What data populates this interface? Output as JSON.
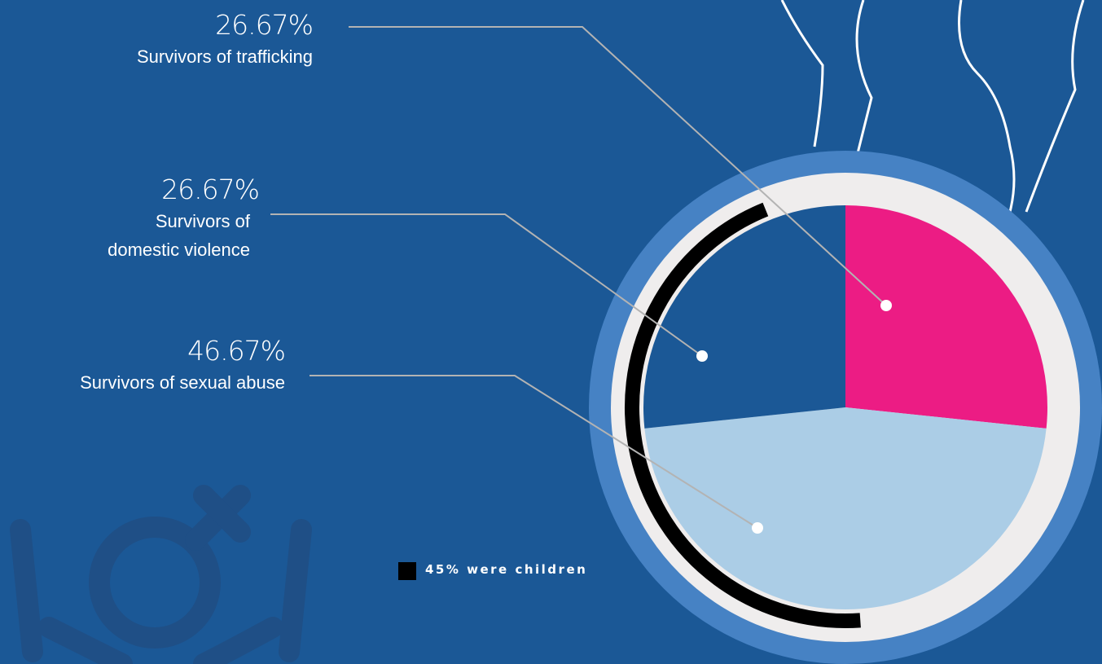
{
  "chart_data": {
    "type": "pie",
    "categories": [
      "Survivors of trafficking",
      "Survivors of sexual abuse",
      "Survivors of domestic violence"
    ],
    "values": [
      26.67,
      46.67,
      26.67
    ],
    "value_labels": [
      "26.67%",
      "46.67%",
      "26.67%"
    ],
    "colors": [
      "#ec1c84",
      "#abcde6",
      "#1b5896"
    ],
    "annotation": {
      "value": 45,
      "label": "45% were children",
      "color": "#000000"
    }
  }
}
